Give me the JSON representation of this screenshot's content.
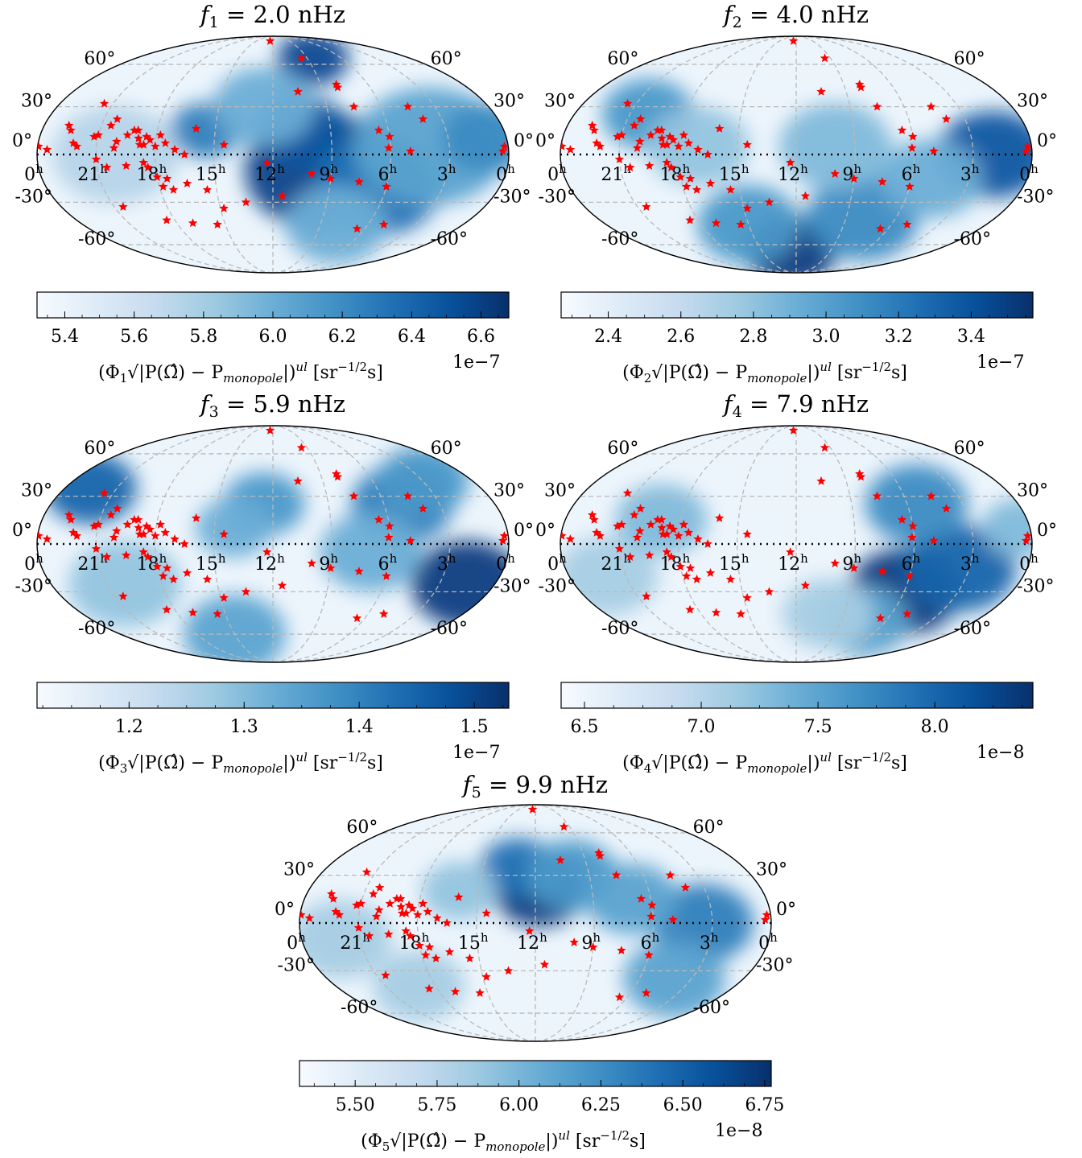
{
  "colors": {
    "cmap": [
      "#f7fbff",
      "#deebf7",
      "#c6dbef",
      "#9ecae1",
      "#6baed6",
      "#4292c6",
      "#2171b5",
      "#08519c",
      "#08306b"
    ],
    "marker": "#ff0000",
    "grid": "#b9b9b9"
  },
  "chart_data": [
    {
      "type": "heatmap",
      "projection": "mollweide",
      "title_var": "f",
      "title_sub": "1",
      "title_value": "= 2.0 nHz",
      "lat_labels": [
        "60°",
        "30°",
        "0°",
        "-30°",
        "-60°"
      ],
      "ra_labels": [
        "0",
        "21",
        "18",
        "15",
        "12",
        "9",
        "6",
        "3",
        "0"
      ],
      "ra_unit": "h",
      "colorbar": {
        "range": [
          5.32,
          6.68
        ],
        "ticks": [
          5.4,
          5.6,
          5.8,
          6.0,
          6.2,
          6.4,
          6.6
        ],
        "tick_labels": [
          "5.4",
          "5.6",
          "5.8",
          "6.0",
          "6.2",
          "6.4",
          "6.6"
        ],
        "exponent": "1e−7"
      },
      "label_pre": "(Φ",
      "label_sub": "1",
      "label_mid": "√|P(Ω̂) − P",
      "label_mid_sub": "monopole",
      "label_end": "|)",
      "label_sup": "ul",
      "label_unit": " [sr",
      "label_unit_sup": "−1/2",
      "label_unit_end": "s]",
      "blobs": [
        {
          "ra": 9.5,
          "dec": -10,
          "level": 0.92,
          "size": 30
        },
        {
          "ra": 10.5,
          "dec": 15,
          "level": 0.85,
          "size": 18
        },
        {
          "ra": 6.5,
          "dec": -20,
          "level": 0.75,
          "size": 25
        },
        {
          "ra": 8.5,
          "dec": 65,
          "level": 0.9,
          "size": 14
        },
        {
          "ra": 15.5,
          "dec": 15,
          "level": 0.7,
          "size": 14
        },
        {
          "ra": 4,
          "dec": 5,
          "level": 0.55,
          "size": 30
        },
        {
          "ra": 12.5,
          "dec": 30,
          "level": 0.5,
          "size": 20
        },
        {
          "ra": 1,
          "dec": 10,
          "level": 0.65,
          "size": 18
        },
        {
          "ra": 8,
          "dec": -45,
          "level": 0.5,
          "size": 20
        },
        {
          "ra": 20,
          "dec": 0,
          "level": 0.3,
          "size": 25
        }
      ]
    },
    {
      "type": "heatmap",
      "projection": "mollweide",
      "title_var": "f",
      "title_sub": "2",
      "title_value": "= 4.0 nHz",
      "lat_labels": [
        "60°",
        "30°",
        "0°",
        "-30°",
        "-60°"
      ],
      "ra_labels": [
        "0",
        "21",
        "18",
        "15",
        "12",
        "9",
        "6",
        "3",
        "0"
      ],
      "ra_unit": "h",
      "colorbar": {
        "range": [
          2.27,
          3.57
        ],
        "ticks": [
          2.4,
          2.6,
          2.8,
          3.0,
          3.2,
          3.4
        ],
        "tick_labels": [
          "2.4",
          "2.6",
          "2.8",
          "3.0",
          "3.2",
          "3.4"
        ],
        "exponent": "1e−7"
      },
      "label_pre": "(Φ",
      "label_sub": "2",
      "label_mid": "√|P(Ω̂) − P",
      "label_mid_sub": "monopole",
      "label_end": "|)",
      "label_sup": "ul",
      "label_unit": " [sr",
      "label_unit_sup": "−1/2",
      "label_unit_end": "s]",
      "blobs": [
        {
          "ra": 12.5,
          "dec": -65,
          "level": 0.95,
          "size": 18
        },
        {
          "ra": 2,
          "dec": 0,
          "level": 0.85,
          "size": 22
        },
        {
          "ra": 15,
          "dec": -45,
          "level": 0.6,
          "size": 20
        },
        {
          "ra": 8,
          "dec": -40,
          "level": 0.65,
          "size": 22
        },
        {
          "ra": 20,
          "dec": 25,
          "level": 0.6,
          "size": 18
        },
        {
          "ra": 10,
          "dec": 5,
          "level": 0.45,
          "size": 22
        },
        {
          "ra": 5,
          "dec": -15,
          "level": 0.5,
          "size": 20
        },
        {
          "ra": 17,
          "dec": 5,
          "level": 0.4,
          "size": 20
        }
      ]
    },
    {
      "type": "heatmap",
      "projection": "mollweide",
      "title_var": "f",
      "title_sub": "3",
      "title_value": "= 5.9 nHz",
      "lat_labels": [
        "60°",
        "30°",
        "0°",
        "-30°",
        "-60°"
      ],
      "ra_labels": [
        "0",
        "21",
        "18",
        "15",
        "12",
        "9",
        "6",
        "3",
        "0"
      ],
      "ra_unit": "h",
      "colorbar": {
        "range": [
          1.12,
          1.53
        ],
        "ticks": [
          1.2,
          1.3,
          1.4,
          1.5
        ],
        "tick_labels": [
          "1.2",
          "1.3",
          "1.4",
          "1.5"
        ],
        "exponent": "1e−7"
      },
      "label_pre": "(Φ",
      "label_sub": "3",
      "label_mid": "√|P(Ω̂) − P",
      "label_mid_sub": "monopole",
      "label_end": "|)",
      "label_sup": "ul",
      "label_unit": " [sr",
      "label_unit_sup": "−1/2",
      "label_unit_end": "s]",
      "blobs": [
        {
          "ra": 1.5,
          "dec": -25,
          "level": 0.95,
          "size": 22
        },
        {
          "ra": 22.5,
          "dec": 35,
          "level": 0.8,
          "size": 18
        },
        {
          "ra": 5,
          "dec": 25,
          "level": 0.7,
          "size": 20
        },
        {
          "ra": 3,
          "dec": 40,
          "level": 0.6,
          "size": 18
        },
        {
          "ra": 12.5,
          "dec": 25,
          "level": 0.6,
          "size": 16
        },
        {
          "ra": 14,
          "dec": 10,
          "level": 0.5,
          "size": 15
        },
        {
          "ra": 15,
          "dec": -60,
          "level": 0.55,
          "size": 20
        },
        {
          "ra": 7,
          "dec": -5,
          "level": 0.5,
          "size": 20
        },
        {
          "ra": 20,
          "dec": -25,
          "level": 0.4,
          "size": 22
        }
      ]
    },
    {
      "type": "heatmap",
      "projection": "mollweide",
      "title_var": "f",
      "title_sub": "4",
      "title_value": "= 7.9 nHz",
      "lat_labels": [
        "60°",
        "30°",
        "0°",
        "-30°",
        "-60°"
      ],
      "ra_labels": [
        "0",
        "21",
        "18",
        "15",
        "12",
        "9",
        "6",
        "3",
        "0"
      ],
      "ra_unit": "h",
      "colorbar": {
        "range": [
          6.4,
          8.42
        ],
        "ticks": [
          6.5,
          7.0,
          7.5,
          8.0
        ],
        "tick_labels": [
          "6.5",
          "7.0",
          "7.5",
          "8.0"
        ],
        "exponent": "1e−8"
      },
      "label_pre": "(Φ",
      "label_sub": "4",
      "label_mid": "√|P(Ω̂) − P",
      "label_mid_sub": "monopole",
      "label_end": "|)",
      "label_sup": "ul",
      "label_unit": " [sr",
      "label_unit_sup": "−1/2",
      "label_unit_end": "s]",
      "blobs": [
        {
          "ra": 6,
          "dec": -30,
          "level": 0.95,
          "size": 22
        },
        {
          "ra": 3.5,
          "dec": -15,
          "level": 0.8,
          "size": 22
        },
        {
          "ra": 5.5,
          "dec": 25,
          "level": 0.65,
          "size": 20
        },
        {
          "ra": 7.5,
          "dec": -50,
          "level": 0.55,
          "size": 18
        },
        {
          "ra": 19,
          "dec": 15,
          "level": 0.45,
          "size": 18
        },
        {
          "ra": 0.5,
          "dec": 10,
          "level": 0.45,
          "size": 15
        },
        {
          "ra": 22,
          "dec": -20,
          "level": 0.35,
          "size": 20
        },
        {
          "ra": 10,
          "dec": -45,
          "level": 0.35,
          "size": 18
        }
      ]
    },
    {
      "type": "heatmap",
      "projection": "mollweide",
      "title_var": "f",
      "title_sub": "5",
      "title_value": "= 9.9 nHz",
      "lat_labels": [
        "60°",
        "30°",
        "0°",
        "-30°",
        "-60°"
      ],
      "ra_labels": [
        "0",
        "21",
        "18",
        "15",
        "12",
        "9",
        "6",
        "3",
        "0"
      ],
      "ra_unit": "h",
      "colorbar": {
        "range": [
          5.33,
          6.77
        ],
        "ticks": [
          5.5,
          5.75,
          6.0,
          6.25,
          6.5,
          6.75
        ],
        "tick_labels": [
          "5.50",
          "5.75",
          "6.00",
          "6.25",
          "6.50",
          "6.75"
        ],
        "exponent": "1e−8"
      },
      "label_pre": "(Φ",
      "label_sub": "5",
      "label_mid": "√|P(Ω̂) − P",
      "label_mid_sub": "monopole",
      "label_end": "|)",
      "label_sup": "ul",
      "label_unit": " [sr",
      "label_unit_sup": "−1/2",
      "label_unit_end": "s]",
      "blobs": [
        {
          "ra": 11.8,
          "dec": 20,
          "level": 0.95,
          "size": 18
        },
        {
          "ra": 13,
          "dec": 35,
          "level": 0.75,
          "size": 15
        },
        {
          "ra": 3.5,
          "dec": 0,
          "level": 0.7,
          "size": 20
        },
        {
          "ra": 10,
          "dec": 30,
          "level": 0.6,
          "size": 18
        },
        {
          "ra": 7,
          "dec": 15,
          "level": 0.55,
          "size": 18
        },
        {
          "ra": 16,
          "dec": 20,
          "level": 0.4,
          "size": 15
        },
        {
          "ra": 4,
          "dec": -35,
          "level": 0.55,
          "size": 20
        },
        {
          "ra": 22,
          "dec": -10,
          "level": 0.35,
          "size": 20
        },
        {
          "ra": 19,
          "dec": -40,
          "level": 0.35,
          "size": 18
        }
      ]
    }
  ],
  "pulsars": [
    [
      23.95,
      5
    ],
    [
      23.5,
      3
    ],
    [
      22.7,
      18
    ],
    [
      22.5,
      15
    ],
    [
      22.2,
      7
    ],
    [
      22.0,
      5
    ],
    [
      21.5,
      32
    ],
    [
      21.2,
      11
    ],
    [
      21.0,
      12
    ],
    [
      20.5,
      18
    ],
    [
      20.3,
      22
    ],
    [
      20.1,
      4
    ],
    [
      20.0,
      8
    ],
    [
      19.5,
      12
    ],
    [
      19.2,
      15
    ],
    [
      19.0,
      15
    ],
    [
      18.9,
      10
    ],
    [
      18.8,
      6
    ],
    [
      18.6,
      6
    ],
    [
      18.5,
      11
    ],
    [
      18.3,
      9
    ],
    [
      18.0,
      5
    ],
    [
      17.8,
      12
    ],
    [
      17.5,
      7
    ],
    [
      17.0,
      3
    ],
    [
      16.5,
      0
    ],
    [
      16.0,
      16
    ],
    [
      14.5,
      6
    ],
    [
      12.5,
      82
    ],
    [
      9.5,
      65
    ],
    [
      8.0,
      45
    ],
    [
      8.0,
      43
    ],
    [
      7.5,
      30
    ],
    [
      6.5,
      15
    ],
    [
      6.0,
      11
    ],
    [
      4.5,
      30
    ],
    [
      4.0,
      22
    ],
    [
      5.0,
      2
    ],
    [
      0.3,
      2
    ],
    [
      0.2,
      5
    ],
    [
      10.5,
      40
    ],
    [
      21.0,
      -3
    ],
    [
      20.5,
      -8
    ],
    [
      19.5,
      -7
    ],
    [
      18.6,
      -5
    ],
    [
      18.4,
      -8
    ],
    [
      18.0,
      -14
    ],
    [
      17.5,
      -15
    ],
    [
      17.8,
      -20
    ],
    [
      17.3,
      -22
    ],
    [
      16.5,
      -18
    ],
    [
      15.5,
      -22
    ],
    [
      14.8,
      -34
    ],
    [
      13.5,
      -30
    ],
    [
      11.5,
      -26
    ],
    [
      10.0,
      -12
    ],
    [
      9.0,
      -15
    ],
    [
      7.5,
      -17
    ],
    [
      6.0,
      -20
    ],
    [
      5.0,
      -45
    ],
    [
      6.5,
      -48
    ],
    [
      20.5,
      -33
    ],
    [
      18.5,
      -42
    ],
    [
      17.0,
      -44
    ],
    [
      15.5,
      -45
    ],
    [
      12.3,
      -5
    ],
    [
      6.1,
      4
    ]
  ]
}
